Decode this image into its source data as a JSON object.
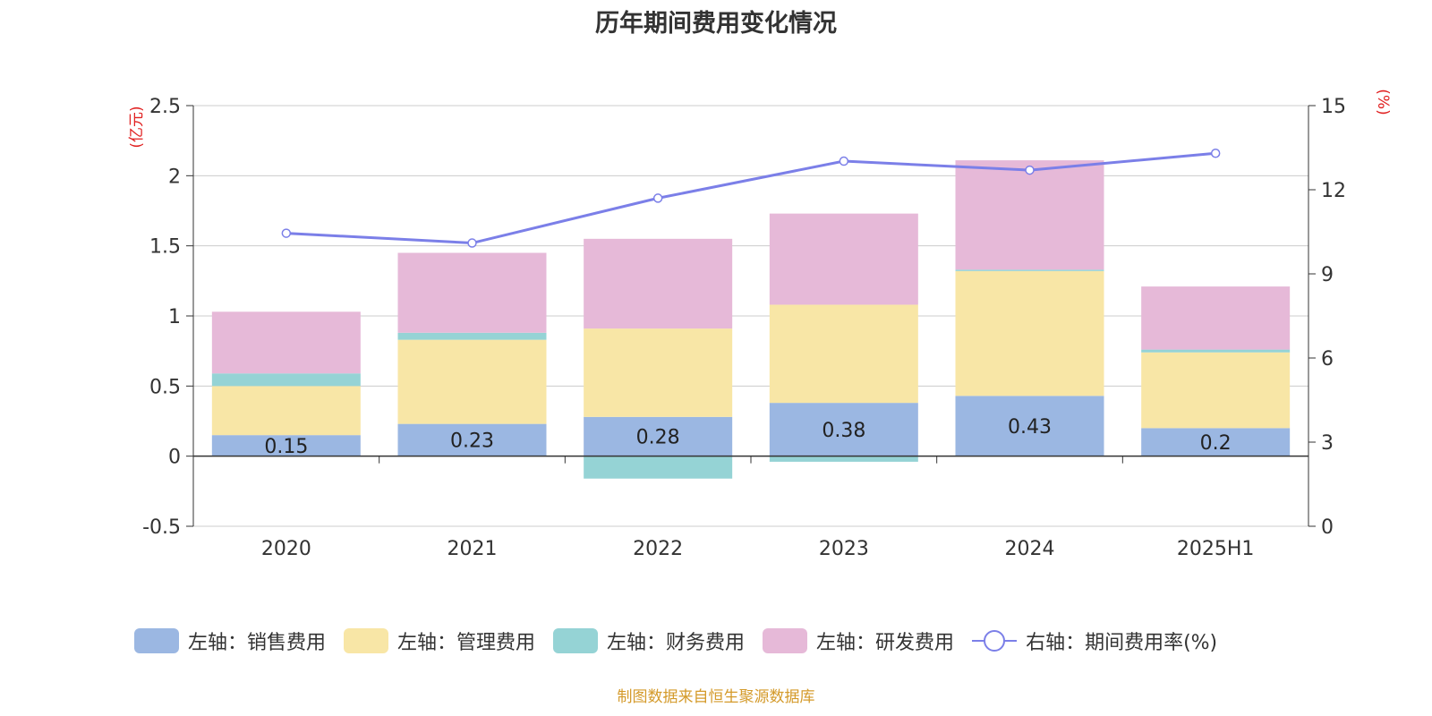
{
  "title": "历年期间费用变化情况",
  "source_note": "制图数据来自恒生聚源数据库",
  "legend": [
    {
      "label": "左轴：销售费用",
      "color": "#9bb7e2",
      "kind": "bar"
    },
    {
      "label": "左轴：管理费用",
      "color": "#f8e6a6",
      "kind": "bar"
    },
    {
      "label": "左轴：财务费用",
      "color": "#95d3d5",
      "kind": "bar"
    },
    {
      "label": "左轴：研发费用",
      "color": "#e6b9d8",
      "kind": "bar"
    },
    {
      "label": "右轴：期间费用率(%)",
      "color": "#7b7fe8",
      "kind": "line"
    }
  ],
  "chart_data": {
    "type": "bar",
    "title": "历年期间费用变化情况",
    "categories": [
      "2020",
      "2021",
      "2022",
      "2023",
      "2024",
      "2025H1"
    ],
    "y_left": {
      "label": "(亿元)",
      "range": [
        -0.5,
        2.5
      ],
      "ticks": [
        "-0.5",
        "0",
        "0.5",
        "1",
        "1.5",
        "2",
        "2.5"
      ]
    },
    "y_right": {
      "label": "(%)",
      "range": [
        0,
        15
      ],
      "ticks": [
        "0",
        "3",
        "6",
        "9",
        "12",
        "15"
      ]
    },
    "grid": true,
    "legend_position": "bottom",
    "series": [
      {
        "name": "左轴：销售费用",
        "axis": "left",
        "stacked": true,
        "color": "#9bb7e2",
        "values": [
          0.15,
          0.23,
          0.28,
          0.38,
          0.43,
          0.2
        ],
        "data_labels": [
          "0.15",
          "0.23",
          "0.28",
          "0.38",
          "0.43",
          "0.2"
        ]
      },
      {
        "name": "左轴：管理费用",
        "axis": "left",
        "stacked": true,
        "color": "#f8e6a6",
        "values": [
          0.35,
          0.6,
          0.63,
          0.7,
          0.89,
          0.54
        ]
      },
      {
        "name": "左轴：财务费用",
        "axis": "left",
        "stacked": true,
        "color": "#95d3d5",
        "values": [
          0.09,
          0.05,
          -0.16,
          -0.04,
          0.01,
          0.02
        ]
      },
      {
        "name": "左轴：研发费用",
        "axis": "left",
        "stacked": true,
        "color": "#e6b9d8",
        "values": [
          0.44,
          0.57,
          0.64,
          0.65,
          0.78,
          0.45
        ]
      },
      {
        "name": "右轴：期间费用率(%)",
        "axis": "right",
        "type": "line",
        "color": "#7b7fe8",
        "values": [
          10.45,
          10.1,
          11.7,
          13.02,
          12.7,
          13.3
        ]
      }
    ]
  }
}
